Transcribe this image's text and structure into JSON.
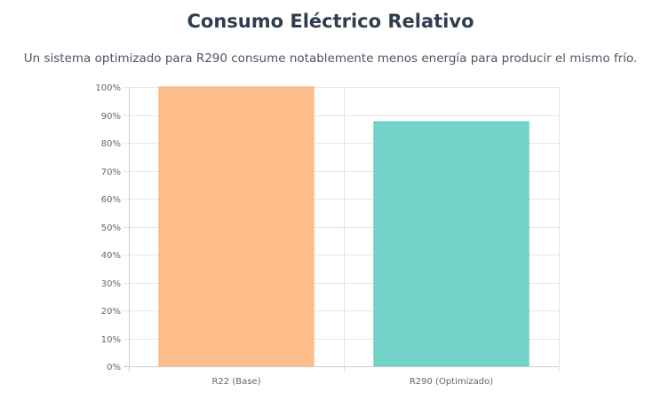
{
  "header": {
    "title": "Consumo Eléctrico Relativo",
    "subtitle": "Un sistema optimizado para R290 consume notablemente menos energía para producir el mismo frío."
  },
  "chart_data": {
    "type": "bar",
    "title": "Consumo Eléctrico Relativo",
    "subtitle": "Un sistema optimizado para R290 consume notablemente menos energía para producir el mismo frío.",
    "categories": [
      "R22 (Base)",
      "R290 (Optimizado)"
    ],
    "values": [
      100,
      87.5
    ],
    "ylim": [
      0,
      100
    ],
    "yticks": [
      0,
      10,
      20,
      30,
      40,
      50,
      60,
      70,
      80,
      90,
      100
    ],
    "ytick_suffix": "%",
    "grid": true,
    "legend": "none",
    "colors": {
      "fills": [
        "#fdbe8b",
        "#72d3c8"
      ],
      "strokes": [
        "#fdb27a",
        "#5cc9bc"
      ],
      "grid": "#e6e6e6",
      "axis": "#cccccc"
    }
  }
}
